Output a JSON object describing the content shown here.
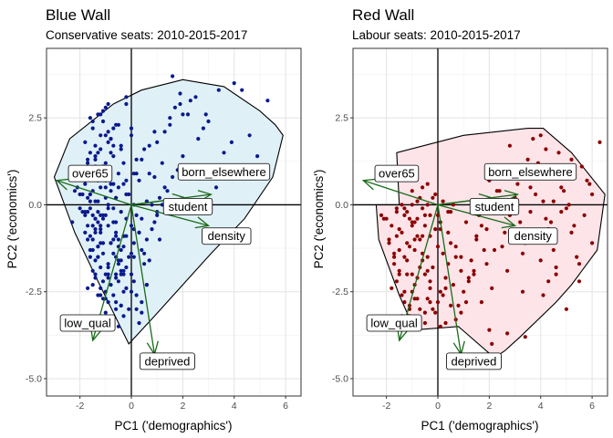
{
  "chart_data": [
    {
      "type": "scatter",
      "title": "Blue Wall",
      "subtitle": "Conservative seats: 2010-2015-2017",
      "xlabel": "PC1 ('demographics')",
      "ylabel": "PC2 ('economics')",
      "xlim": [
        -3.3,
        6.6
      ],
      "ylim": [
        -5.5,
        4.5
      ],
      "x_ticks": [
        -2,
        0,
        2,
        4,
        6
      ],
      "y_ticks": [
        -5.0,
        -2.5,
        0.0,
        2.5
      ],
      "x_tick_labels": [
        "-2",
        "0",
        "2",
        "4",
        "6"
      ],
      "y_tick_labels": [
        "-5.0",
        "-2.5",
        "0.0",
        "2.5"
      ],
      "grid": true,
      "point_color": "#0a1a8c",
      "hull_fill": "#dff0f7",
      "arrow_color": "#1a6b1a",
      "hull": [
        [
          -3.0,
          0.8
        ],
        [
          -2.4,
          1.9
        ],
        [
          -0.7,
          2.9
        ],
        [
          0.4,
          3.3
        ],
        [
          2.0,
          3.6
        ],
        [
          3.6,
          3.4
        ],
        [
          5.0,
          2.7
        ],
        [
          5.6,
          2.3
        ],
        [
          5.9,
          2.0
        ],
        [
          5.5,
          0.8
        ],
        [
          4.4,
          -0.4
        ],
        [
          3.1,
          -1.4
        ],
        [
          0.9,
          -3.2
        ],
        [
          -0.1,
          -4.0
        ],
        [
          -1.3,
          -2.2
        ],
        [
          -2.2,
          -0.8
        ],
        [
          -3.0,
          0.8
        ]
      ],
      "arrows": [
        {
          "label": "over65",
          "x": -2.9,
          "y": 0.7,
          "label_x": -1.6,
          "label_y": 0.9
        },
        {
          "label": "born_elsewhere",
          "x": 3.1,
          "y": 0.3,
          "label_x": 3.6,
          "label_y": 0.95
        },
        {
          "label": "student",
          "x": 2.1,
          "y": 0.2,
          "label_x": 2.2,
          "label_y": -0.05
        },
        {
          "label": "density",
          "x": 3.0,
          "y": -0.6,
          "label_x": 3.7,
          "label_y": -0.9
        },
        {
          "label": "low_qual",
          "x": -1.5,
          "y": -3.9,
          "label_x": -1.7,
          "label_y": -3.4
        },
        {
          "label": "deprived",
          "x": 0.9,
          "y": -4.3,
          "label_x": 1.4,
          "label_y": -4.5
        }
      ],
      "points_x": [
        -1.5,
        -1.8,
        -1.3,
        -1.6,
        -1.7,
        -1.9,
        -1.2,
        -1.4,
        -1.1,
        -1.8,
        -1.6,
        -1.4,
        -1.2,
        -1.0,
        -0.9,
        -1.5,
        -1.3,
        -1.7,
        -1.1,
        -0.8,
        -1.6,
        -1.4,
        -1.2,
        -1.5,
        -1.0,
        -0.7,
        -0.6,
        -1.3,
        -1.9,
        -2.0,
        -1.7,
        -1.1,
        -0.9,
        -0.5,
        -0.4,
        -0.8,
        -1.2,
        -1.5,
        -1.4,
        -0.6,
        -0.3,
        -1.0,
        -1.3,
        -1.6,
        -0.7,
        -0.5,
        -1.1,
        -1.8,
        -2.1,
        -1.4,
        -0.9,
        -0.4,
        -0.2,
        -1.2,
        -1.6,
        -0.8,
        -0.6,
        -1.0,
        -1.3,
        -1.5,
        -0.3,
        -0.1,
        -0.7,
        -1.1,
        -1.4,
        -1.7,
        -0.9,
        -0.5,
        -0.2,
        0.1,
        -0.6,
        -1.0,
        -1.2,
        -1.5,
        -0.4,
        0.0,
        -0.8,
        -1.3,
        -1.6,
        -0.3,
        0.2,
        -0.5,
        -0.9,
        -1.1,
        -0.7,
        0.3,
        0.1,
        -0.2,
        -0.6,
        -1.0,
        -1.4,
        -0.4,
        0.4,
        0.0,
        -0.3,
        -0.8,
        -1.2,
        0.5,
        0.2,
        -0.1,
        -0.5,
        -0.9,
        0.6,
        0.3,
        -0.4,
        -0.7,
        0.7,
        0.4,
        0.0,
        -0.2,
        0.8,
        0.5,
        0.1,
        -0.3,
        1.0,
        0.6,
        0.2,
        1.2,
        0.9,
        0.4,
        1.4,
        1.1,
        0.7,
        1.6,
        1.3,
        0.9,
        1.8,
        1.5,
        2.0,
        1.7,
        2.3,
        2.6,
        1.9,
        2.9,
        3.3,
        -1.6,
        -1.4,
        -1.8,
        -1.2,
        -1.5,
        -1.3,
        -1.7,
        -1.1,
        -0.9,
        -1.0,
        -1.4,
        -1.6,
        -1.2,
        -0.8,
        -0.6,
        -1.1,
        -1.5,
        -1.3,
        -0.7,
        -0.5,
        -1.0,
        -0.9,
        -1.3,
        -1.6,
        -0.4,
        -0.2,
        -1.2,
        -0.8,
        -0.6,
        -1.4,
        -1.7,
        -1.0,
        -0.3,
        -0.7,
        -1.1,
        -0.5,
        -0.9,
        -1.3,
        -0.2,
        0.0,
        -0.6,
        -1.0,
        -1.2,
        -0.4,
        -0.8,
        0.1,
        -0.3,
        -0.7,
        -1.1,
        0.2,
        -0.5,
        -0.9,
        0.0,
        -0.4,
        0.3,
        -0.1,
        -0.6,
        0.4,
        0.1,
        -0.3,
        0.6,
        0.2,
        -0.2,
        0.8,
        0.4,
        1.0,
        0.5,
        1.2,
        0.7,
        1.5,
        1.0,
        2.0,
        1.3,
        2.5,
        3.0,
        3.4,
        4.0,
        4.6,
        4.9,
        3.9,
        5.3,
        2.4,
        1.9,
        1.6,
        -1.9,
        -2.2,
        -2.0,
        -1.8,
        -2.3,
        -1.7,
        -1.5,
        -1.2,
        -1.4,
        -1.6,
        -0.9,
        -0.5,
        -0.7,
        -0.2,
        0.0,
        -1.0,
        -1.3,
        -0.6,
        -1.8,
        -1.1,
        -1.4,
        -0.8,
        -1.2,
        -1.5,
        -0.4,
        -1.0,
        -0.3,
        -0.6,
        0.1,
        0.3,
        0.6,
        1.1,
        0.9,
        2.2,
        2.8,
        3.6,
        4.3
      ],
      "points_y": [
        2.2,
        1.8,
        2.6,
        1.5,
        1.2,
        1.0,
        2.0,
        1.7,
        2.4,
        0.6,
        0.9,
        1.3,
        1.6,
        2.8,
        2.1,
        0.4,
        0.7,
        0.2,
        1.1,
        1.9,
        -0.1,
        0.1,
        0.5,
        -0.3,
        0.8,
        1.4,
        2.3,
        -0.5,
        -0.2,
        0.3,
        -0.6,
        -0.4,
        0.0,
        0.9,
        1.7,
        0.6,
        -0.8,
        -1.0,
        -0.7,
        0.2,
        1.2,
        -0.3,
        -1.2,
        -0.9,
        -0.1,
        0.5,
        -1.4,
        -0.8,
        0.5,
        -1.6,
        -0.6,
        -0.2,
        0.7,
        -1.8,
        -1.3,
        -1.1,
        -0.5,
        -2.0,
        -1.5,
        -1.9,
        -0.9,
        0.3,
        -1.4,
        -2.2,
        -2.1,
        -1.0,
        -1.7,
        -1.2,
        -0.4,
        0.0,
        -2.0,
        -2.5,
        -2.4,
        -2.3,
        -1.6,
        -0.6,
        -2.3,
        -2.6,
        -1.5,
        -1.9,
        -0.3,
        -2.2,
        -2.8,
        -2.7,
        -2.6,
        -0.8,
        -1.5,
        -2.4,
        -3.0,
        -3.1,
        -2.0,
        -2.9,
        -1.3,
        -2.0,
        -3.2,
        -3.3,
        -1.1,
        -1.7,
        -2.6,
        -3.0,
        -3.5,
        -2.0,
        -2.3,
        -3.4,
        -2.0,
        -1.0,
        -1.6,
        -2.8,
        -2.5,
        0.3,
        -0.7,
        -1.4,
        -2.2,
        0.6,
        -0.3,
        -1.0,
        0.9,
        0.0,
        -0.5,
        1.3,
        0.4,
        0.2,
        1.7,
        0.8,
        0.5,
        2.1,
        1.0,
        2.5,
        1.4,
        2.8,
        3.0,
        1.9,
        3.2,
        2.6,
        0.5,
        0.1,
        -0.4,
        -0.2,
        -0.7,
        0.8,
        1.5,
        1.3,
        -0.3,
        1.8,
        2.0,
        1.4,
        0.3,
        1.0,
        0.4,
        -0.9,
        -1.1,
        -1.3,
        -0.2,
        2.2,
        -1.6,
        1.2,
        -0.1,
        -1.5,
        2.5,
        1.6,
        -1.8,
        -0.6,
        1.9,
        -2.1,
        -0.8,
        -2.4,
        0.7,
        -2.0,
        0.6,
        2.7,
        -1.7,
        -2.1,
        -1.2,
        2.9,
        -1.4,
        0.2,
        -2.7,
        -2.6,
        -1.9,
        1.5,
        -0.7,
        -2.5,
        -0.5,
        1.1,
        -3.0,
        -1.0,
        -1.8,
        2.0,
        -2.9,
        -0.8,
        -1.5,
        -2.8,
        -0.4,
        0.9,
        -1.2,
        -2.3,
        1.3,
        -0.9,
        0.0,
        -3.1,
        -0.2,
        1.6,
        1.2,
        0.9,
        2.3,
        1.8,
        2.6,
        2.1,
        3.1,
        2.4,
        3.3,
        3.5,
        2.0,
        1.4,
        1.8,
        3.0,
        1.0,
        2.9,
        3.7,
        0.3,
        0.4,
        -0.1,
        -0.3,
        -0.5,
        -0.2,
        2.4,
        2.6,
        -0.4,
        0.3,
        2.9,
        2.3,
        1.7,
        3.1,
        2.2,
        0.2,
        0.1,
        -0.8,
        0.8,
        0.9,
        1.1,
        -1.1,
        -0.3,
        -0.6,
        -1.3,
        0.5,
        -0.9,
        -1.5,
        -1.1,
        0.7,
        0.1,
        -1.0,
        0.8,
        2.6,
        2.2,
        1.5,
        3.3
      ],
      "has_grid_lines": true
    },
    {
      "type": "scatter",
      "title": "Red Wall",
      "subtitle": "Labour seats: 2010-2015-2017",
      "xlabel": "PC1 ('demographics')",
      "ylabel": "PC2 ('economics')",
      "xlim": [
        -3.3,
        6.6
      ],
      "ylim": [
        -5.5,
        4.5
      ],
      "x_ticks": [
        -2,
        0,
        2,
        4,
        6
      ],
      "y_ticks": [
        -5.0,
        -2.5,
        0.0,
        2.5
      ],
      "x_tick_labels": [
        "-2",
        "0",
        "2",
        "4",
        "6"
      ],
      "y_tick_labels": [
        "-5.0",
        "-2.5",
        "0.0",
        "2.5"
      ],
      "grid": true,
      "point_color": "#8b0000",
      "hull_fill": "#fde4e8",
      "arrow_color": "#1a6b1a",
      "hull": [
        [
          -1.5,
          0.0
        ],
        [
          -1.6,
          1.5
        ],
        [
          1.0,
          2.0
        ],
        [
          3.5,
          2.2
        ],
        [
          4.1,
          2.2
        ],
        [
          5.2,
          1.5
        ],
        [
          6.5,
          0.3
        ],
        [
          6.2,
          -1.3
        ],
        [
          5.2,
          -2.3
        ],
        [
          4.6,
          -2.8
        ],
        [
          3.2,
          -3.8
        ],
        [
          2.6,
          -4.2
        ],
        [
          2.2,
          -4.4
        ],
        [
          0.8,
          -3.5
        ],
        [
          -0.9,
          -3.6
        ],
        [
          -1.5,
          -2.6
        ],
        [
          -2.3,
          -1.0
        ],
        [
          -2.4,
          0.0
        ],
        [
          -1.5,
          0.0
        ]
      ],
      "arrows": [
        {
          "label": "over65",
          "x": -2.9,
          "y": 0.7,
          "label_x": -1.6,
          "label_y": 0.9
        },
        {
          "label": "born_elsewhere",
          "x": 3.1,
          "y": 0.3,
          "label_x": 3.6,
          "label_y": 0.95
        },
        {
          "label": "student",
          "x": 2.1,
          "y": 0.2,
          "label_x": 2.2,
          "label_y": -0.05
        },
        {
          "label": "density",
          "x": 3.0,
          "y": -0.6,
          "label_x": 3.7,
          "label_y": -0.9
        },
        {
          "label": "low_qual",
          "x": -1.5,
          "y": -3.9,
          "label_x": -1.7,
          "label_y": -3.4
        },
        {
          "label": "deprived",
          "x": 0.9,
          "y": -4.3,
          "label_x": 1.4,
          "label_y": -4.5
        }
      ],
      "points_x": [
        -1.8,
        -1.6,
        -1.5,
        -1.7,
        -1.9,
        -2.0,
        -1.4,
        -1.3,
        -1.2,
        -1.6,
        -1.8,
        -1.5,
        -1.1,
        -1.0,
        -1.4,
        -1.7,
        -1.3,
        -0.9,
        -1.2,
        -1.6,
        -0.8,
        -1.0,
        -1.5,
        -1.1,
        -0.7,
        -0.9,
        -1.3,
        -0.6,
        -1.4,
        -0.8,
        -1.2,
        -0.5,
        -1.0,
        -0.7,
        -0.4,
        -1.1,
        -0.6,
        -0.9,
        -0.3,
        -0.5,
        -0.8,
        -0.2,
        -1.0,
        -0.4,
        -0.7,
        -0.1,
        -0.3,
        -0.6,
        0.0,
        -0.2,
        -0.5,
        0.1,
        -0.4,
        0.2,
        0.0,
        -0.3,
        0.3,
        0.1,
        0.4,
        0.2,
        0.5,
        0.3,
        0.6,
        0.4,
        0.7,
        0.8,
        0.5,
        0.9,
        1.0,
        0.7,
        1.1,
        1.2,
        0.9,
        1.3,
        1.5,
        1.1,
        1.6,
        1.8,
        1.4,
        2.0,
        1.7,
        2.2,
        1.9,
        2.4,
        2.1,
        2.6,
        2.3,
        2.8,
        2.5,
        3.0,
        2.7,
        3.2,
        2.9,
        3.4,
        3.1,
        3.6,
        3.3,
        3.8,
        3.5,
        4.0,
        3.7,
        4.2,
        3.9,
        4.4,
        4.1,
        4.6,
        4.3,
        4.8,
        4.5,
        5.0,
        4.7,
        5.2,
        4.9,
        5.4,
        5.1,
        5.6,
        5.3,
        5.8,
        5.5,
        6.0,
        5.7,
        6.3,
        6.0,
        5.9,
        4.2,
        3.8,
        4.6,
        3.5,
        4.0,
        4.4,
        3.0,
        2.8,
        3.3,
        2.5,
        4.1,
        5.2,
        4.8,
        5.5,
        3.7,
        2.3,
        1.9,
        2.6,
        3.9,
        4.5,
        5.0,
        4.3,
        3.6,
        -2.1,
        -2.2,
        -1.9,
        -1.7,
        -1.5,
        -1.3,
        -1.1,
        -0.9,
        -0.7,
        -0.5,
        -0.3,
        -0.1,
        0.1,
        0.3,
        0.5,
        0.7,
        -1.6,
        -1.4,
        -1.2,
        -1.0,
        -0.8,
        -0.6,
        -0.4,
        -0.2,
        0.0,
        0.2,
        0.4,
        0.6,
        -1.3,
        -1.1,
        -0.9,
        -0.7,
        -0.5,
        -0.3,
        -0.1,
        0.1,
        -1.0,
        -0.8,
        -0.6,
        -0.4,
        1.5,
        2.1,
        2.7,
        3.4,
        2.2,
        1.4,
        0.9,
        1.2,
        1.7,
        2.0
      ],
      "points_y": [
        -0.6,
        -0.9,
        -1.3,
        -1.7,
        -1.1,
        -0.4,
        -0.8,
        -1.5,
        -2.0,
        -2.2,
        -2.4,
        -1.9,
        -1.2,
        -0.5,
        -2.6,
        -1.4,
        -2.8,
        -1.0,
        -1.6,
        -0.2,
        -2.1,
        -2.5,
        -0.7,
        -3.0,
        -1.8,
        -2.3,
        -0.3,
        -1.4,
        -3.2,
        -2.7,
        -1.1,
        -2.0,
        -0.6,
        -3.3,
        -1.5,
        -2.9,
        -0.9,
        -1.3,
        -2.4,
        -3.1,
        -0.4,
        -1.8,
        -2.0,
        -2.7,
        -1.0,
        -0.7,
        -2.2,
        -1.6,
        -1.2,
        -3.0,
        -0.3,
        -2.5,
        -1.9,
        -1.4,
        -2.8,
        -0.9,
        -2.1,
        -0.5,
        -1.7,
        -2.6,
        -1.1,
        -3.4,
        -2.3,
        -0.8,
        -1.5,
        -2.9,
        -0.2,
        -1.9,
        -2.5,
        -1.2,
        -0.5,
        -2.2,
        -3.1,
        -1.6,
        -0.9,
        -2.8,
        -0.3,
        -1.3,
        -2.0,
        0.7,
        -0.6,
        -0.1,
        -1.7,
        0.4,
        -2.4,
        -0.8,
        0.9,
        -0.3,
        -1.2,
        0.2,
        -1.9,
        -0.5,
        1.0,
        -1.1,
        0.6,
        -0.2,
        -2.5,
        0.3,
        -0.9,
        -1.6,
        0.8,
        -0.4,
        1.2,
        -1.0,
        0.1,
        -2.0,
        -0.7,
        0.5,
        -1.3,
        -0.1,
        1.5,
        -0.8,
        0.4,
        -1.5,
        0.0,
        1.1,
        -0.6,
        0.7,
        -2.2,
        0.3,
        -0.3,
        1.8,
        -1.1,
        0.6,
        1.6,
        0.9,
        -1.8,
        1.3,
        2.0,
        -0.5,
        0.2,
        1.7,
        -1.4,
        0.8,
        -2.6,
        1.3,
        -0.2,
        -1.7,
        1.9,
        0.4,
        -0.7,
        1.0,
        -0.9,
        0.1,
        -3.0,
        -2.2,
        0.5,
        -0.4,
        -0.3,
        -1.0,
        -1.5,
        -2.0,
        -2.5,
        -3.2,
        -2.7,
        -3.0,
        -3.4,
        -2.8,
        -3.1,
        -3.5,
        -2.4,
        -2.9,
        -3.3,
        -0.1,
        0.0,
        -0.2,
        0.0,
        0.1,
        -0.1,
        0.0,
        0.2,
        -0.3,
        0.1,
        -0.2,
        0.0,
        -0.1,
        -0.4,
        -0.5,
        0.2,
        -0.6,
        -0.3,
        0.3,
        -0.7,
        0.4,
        -0.9,
        0.5,
        0.6,
        -1.0,
        -4.0,
        -3.7,
        -3.8,
        -1.3,
        -1.9,
        -1.5,
        -2.1,
        -2.8,
        -3.6
      ],
      "has_grid_lines": true
    }
  ]
}
